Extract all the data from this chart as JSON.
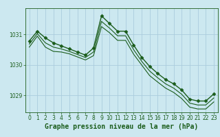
{
  "title": "Graphe pression niveau de la mer (hPa)",
  "bg_color": "#cce8f0",
  "grid_color": "#aaccdd",
  "line_color": "#1a5c1a",
  "text_color": "#1a5c1a",
  "xlim": [
    -0.5,
    23.5
  ],
  "ylim": [
    1028.45,
    1031.85
  ],
  "yticks": [
    1029,
    1030,
    1031
  ],
  "xticks": [
    0,
    1,
    2,
    3,
    4,
    5,
    6,
    7,
    8,
    9,
    10,
    11,
    12,
    13,
    14,
    15,
    16,
    17,
    18,
    19,
    20,
    21,
    22,
    23
  ],
  "series": [
    {
      "x": [
        0,
        1,
        2,
        3,
        4,
        5,
        6,
        7,
        8,
        9,
        10,
        11,
        12,
        13,
        14,
        15,
        16,
        17,
        18,
        19,
        20,
        21,
        22,
        23
      ],
      "y": [
        1030.78,
        1031.1,
        1030.88,
        1030.72,
        1030.62,
        1030.52,
        1030.42,
        1030.32,
        1030.55,
        1031.6,
        1031.35,
        1031.1,
        1031.1,
        1030.65,
        1030.25,
        1029.95,
        1029.72,
        1029.52,
        1029.38,
        1029.18,
        1028.88,
        1028.82,
        1028.82,
        1029.05
      ],
      "marker": "D",
      "markersize": 2.5,
      "linewidth": 1.0
    },
    {
      "x": [
        0,
        1,
        2,
        3,
        4,
        5,
        6,
        7,
        8,
        9,
        10,
        11,
        12,
        13,
        14,
        15,
        16,
        17,
        18,
        19,
        20,
        21,
        22,
        23
      ],
      "y": [
        1030.68,
        1031.02,
        1030.72,
        1030.58,
        1030.52,
        1030.44,
        1030.34,
        1030.24,
        1030.42,
        1031.42,
        1031.2,
        1030.95,
        1030.95,
        1030.5,
        1030.12,
        1029.8,
        1029.58,
        1029.38,
        1029.24,
        1029.04,
        1028.75,
        1028.69,
        1028.69,
        1028.92
      ],
      "marker": null,
      "linewidth": 0.8
    },
    {
      "x": [
        0,
        1,
        2,
        3,
        4,
        5,
        6,
        7,
        8,
        9,
        10,
        11,
        12,
        13,
        14,
        15,
        16,
        17,
        18,
        19,
        20,
        21,
        22,
        23
      ],
      "y": [
        1030.58,
        1030.94,
        1030.58,
        1030.44,
        1030.42,
        1030.36,
        1030.26,
        1030.16,
        1030.3,
        1031.25,
        1031.05,
        1030.8,
        1030.8,
        1030.35,
        1030.0,
        1029.65,
        1029.44,
        1029.24,
        1029.1,
        1028.9,
        1028.62,
        1028.56,
        1028.56,
        1028.79
      ],
      "marker": null,
      "linewidth": 0.8
    }
  ],
  "title_fontsize": 7,
  "tick_fontsize": 5.5
}
